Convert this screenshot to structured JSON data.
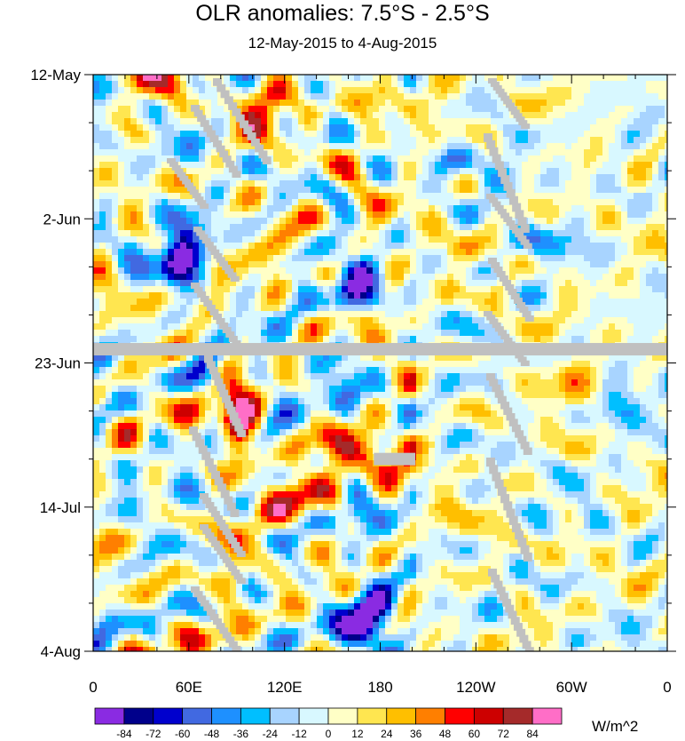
{
  "chart_data": {
    "type": "heatmap",
    "title": "OLR anomalies: 7.5°S - 2.5°S",
    "subtitle": "12-May-2015 to 4-Aug-2015",
    "x_axis": {
      "quantity": "longitude",
      "range": [
        "0",
        "0"
      ],
      "tick_labels": [
        "0",
        "60E",
        "120E",
        "180",
        "120W",
        "60W",
        "0"
      ],
      "tick_values_deg_east": [
        0,
        60,
        120,
        180,
        240,
        300,
        360
      ]
    },
    "y_axis": {
      "quantity": "time",
      "range": [
        "12-May-2015",
        "4-Aug-2015"
      ],
      "direction": "time increases downward",
      "tick_labels": [
        "12-May",
        "2-Jun",
        "23-Jun",
        "14-Jul",
        "4-Aug"
      ],
      "tick_dates": [
        "2015-05-12",
        "2015-06-02",
        "2015-06-23",
        "2015-07-14",
        "2015-08-04"
      ]
    },
    "colorbar": {
      "units": "W/m^2",
      "levels": [
        -84,
        -72,
        -60,
        -48,
        -36,
        -24,
        -12,
        0,
        12,
        24,
        36,
        48,
        60,
        72,
        84
      ],
      "colors": [
        "#8a2be2",
        "#00008b",
        "#0000cd",
        "#4169e1",
        "#1e90ff",
        "#00bfff",
        "#a8d4ff",
        "#d8f8ff",
        "#ffffc6",
        "#ffe650",
        "#ffbf00",
        "#ff7f00",
        "#ff0000",
        "#cd0000",
        "#a52a2a",
        "#ff6ec7"
      ]
    },
    "missing_color": "#c0c0c0",
    "missing_regions": [
      {
        "type": "row",
        "date": "2015-06-21",
        "lon_range": [
          0,
          360
        ]
      },
      {
        "type": "block",
        "date": "2015-07-07",
        "lon_range": [
          176,
          202
        ]
      }
    ],
    "notable_features": [
      {
        "desc": "positive anomalies",
        "lon": 95,
        "date": "2015-06-30",
        "value": 60
      },
      {
        "desc": "positive anomalies",
        "lon": 152,
        "date": "2015-07-06",
        "value": 72
      },
      {
        "desc": "positive anomalies",
        "lon": 108,
        "date": "2015-05-16",
        "value": 48
      },
      {
        "desc": "negative anomalies",
        "lon": 178,
        "date": "2015-07-29",
        "value": -84
      },
      {
        "desc": "negative anomalies",
        "lon": 58,
        "date": "2015-06-06",
        "value": -72
      },
      {
        "desc": "negative anomalies",
        "lon": 160,
        "date": "2015-06-27",
        "value": -60
      },
      {
        "desc": "negative anomalies",
        "lon": 168,
        "date": "2015-06-10",
        "value": -60
      }
    ]
  }
}
